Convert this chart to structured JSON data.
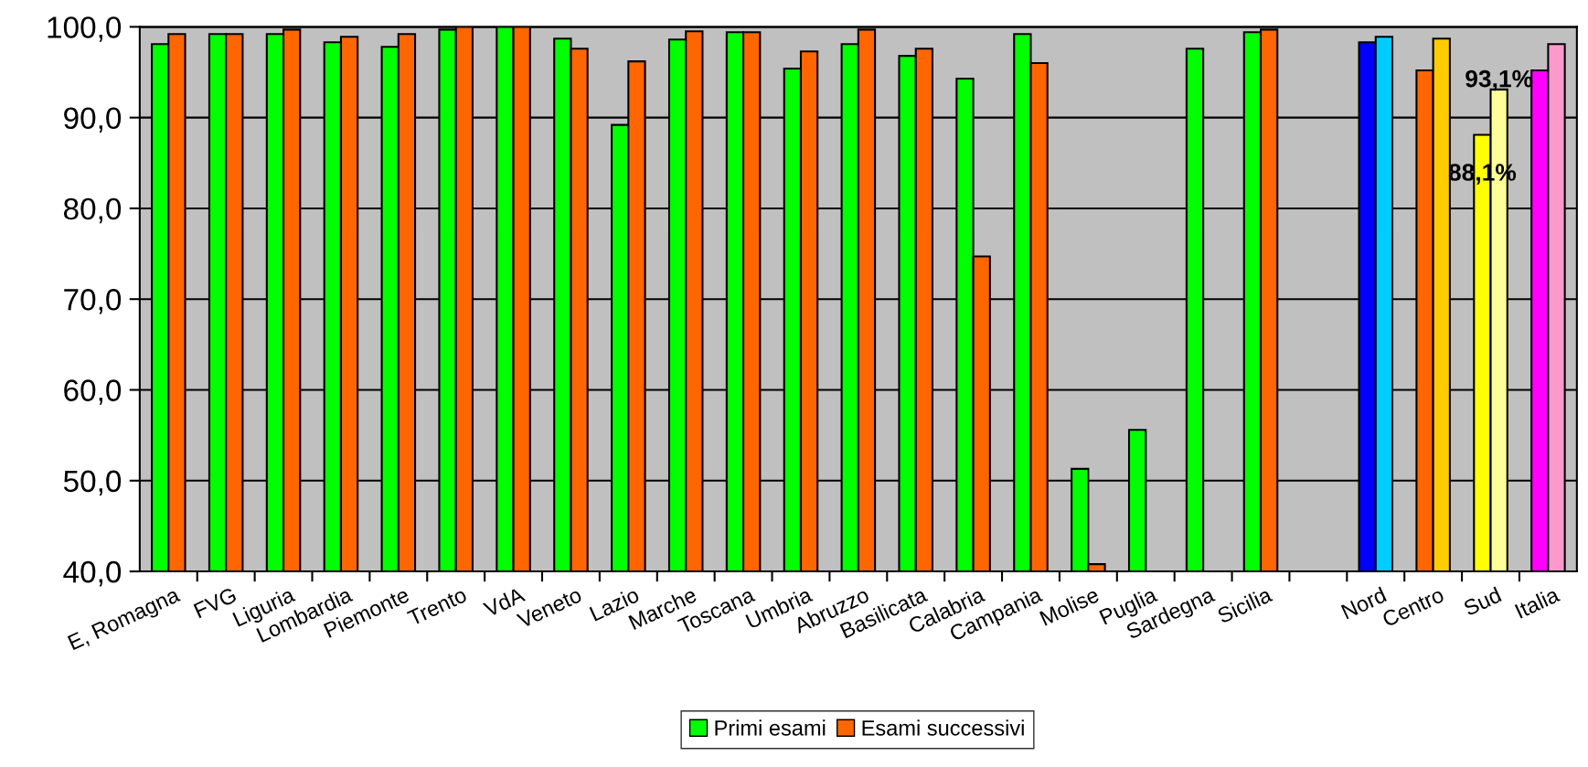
{
  "chart_data": {
    "type": "bar",
    "categories": [
      "E, Romagna",
      "FVG",
      "Liguria",
      "Lombardia",
      "Piemonte",
      "Trento",
      "VdA",
      "Veneto",
      "Lazio",
      "Marche",
      "Toscana",
      "Umbria",
      "Abruzzo",
      "Basilicata",
      "Calabria",
      "Campania",
      "Molise",
      "Puglia",
      "Sardegna",
      "Sicilia",
      null,
      "Nord",
      "Centro",
      "Sud",
      "Italia"
    ],
    "series": [
      {
        "name": "Primi esami",
        "color": "#00ff00",
        "colors": [
          "#00ff00",
          "#00ff00",
          "#00ff00",
          "#00ff00",
          "#00ff00",
          "#00ff00",
          "#00ff00",
          "#00ff00",
          "#00ff00",
          "#00ff00",
          "#00ff00",
          "#00ff00",
          "#00ff00",
          "#00ff00",
          "#00ff00",
          "#00ff00",
          "#00ff00",
          "#00ff00",
          "#00ff00",
          "#00ff00",
          "#00ff00",
          "#0000ff",
          "#ff6600",
          "#ffff00",
          "#ff00ff"
        ],
        "values": [
          98.1,
          99.2,
          99.2,
          98.3,
          97.8,
          99.7,
          100.0,
          98.7,
          89.2,
          98.6,
          99.4,
          95.4,
          98.1,
          96.8,
          94.3,
          99.2,
          51.3,
          55.6,
          97.6,
          99.4,
          null,
          98.3,
          95.2,
          88.1,
          95.2
        ],
        "value_labels": [
          null,
          null,
          null,
          null,
          null,
          null,
          null,
          null,
          null,
          null,
          null,
          null,
          null,
          null,
          null,
          null,
          null,
          null,
          null,
          null,
          null,
          null,
          null,
          "88,1%",
          null
        ]
      },
      {
        "name": "Esami successivi",
        "color": "#ff6600",
        "colors": [
          "#ff6600",
          "#ff6600",
          "#ff6600",
          "#ff6600",
          "#ff6600",
          "#ff6600",
          "#ff6600",
          "#ff6600",
          "#ff6600",
          "#ff6600",
          "#ff6600",
          "#ff6600",
          "#ff6600",
          "#ff6600",
          "#ff6600",
          "#ff6600",
          "#ff6600",
          "#ff6600",
          "#ff6600",
          "#ff6600",
          "#ff6600",
          "#00ccff",
          "#ffcc00",
          "#ffff99",
          "#ff99cc"
        ],
        "values": [
          99.2,
          99.2,
          99.7,
          98.9,
          99.2,
          100.0,
          100.0,
          97.6,
          96.2,
          99.5,
          99.4,
          97.3,
          99.7,
          97.6,
          74.7,
          96.0,
          40.8,
          null,
          null,
          99.7,
          null,
          98.9,
          98.7,
          93.1,
          98.1
        ],
        "value_labels": [
          null,
          null,
          null,
          null,
          null,
          null,
          null,
          null,
          null,
          null,
          null,
          null,
          null,
          null,
          null,
          null,
          null,
          null,
          null,
          null,
          null,
          null,
          null,
          "93,1%",
          null
        ]
      }
    ],
    "ylim": [
      40,
      100
    ],
    "yticks": [
      {
        "value": 40,
        "label": "40,0"
      },
      {
        "value": 50,
        "label": "50,0"
      },
      {
        "value": 60,
        "label": "60,0"
      },
      {
        "value": 70,
        "label": "70,0"
      },
      {
        "value": 80,
        "label": "80,0"
      },
      {
        "value": 90,
        "label": "90,0"
      },
      {
        "value": 100,
        "label": "100,0"
      }
    ],
    "grid": "y",
    "legend": "bottom"
  }
}
